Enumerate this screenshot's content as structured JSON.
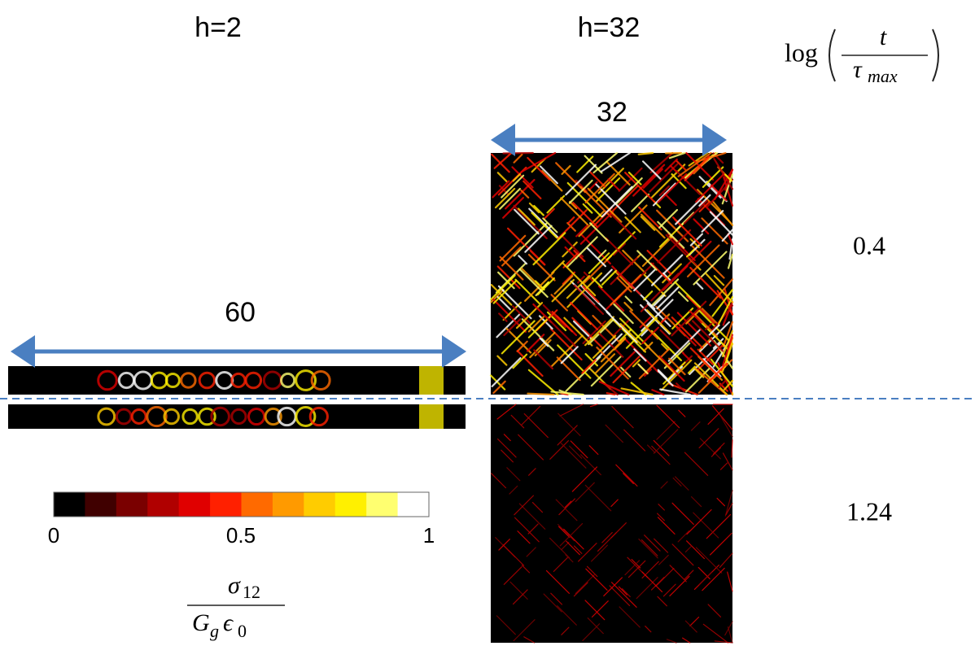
{
  "header": {
    "left_label": "h=2",
    "right_label": "h=32"
  },
  "time_label": {
    "log": "log",
    "numerator": "t",
    "denominator": "τ",
    "denominator_sub": "max"
  },
  "panels": {
    "width_right": "32",
    "width_left": "60"
  },
  "rows": [
    {
      "time": "0.4"
    },
    {
      "time": "1.24"
    }
  ],
  "colorbar": {
    "tick_labels": [
      "0",
      "0.5",
      "1"
    ],
    "colors": [
      "#000000",
      "#400000",
      "#7a0000",
      "#b00000",
      "#e00000",
      "#ff2000",
      "#ff6a00",
      "#ff9a00",
      "#ffcc00",
      "#fff000",
      "#ffff70",
      "#ffffff"
    ],
    "label": {
      "numerator": "σ",
      "numerator_sub": "12",
      "denominator_a": "G",
      "denominator_a_sub": "g",
      "denominator_b": "ϵ",
      "denominator_b_sub": "0"
    }
  },
  "guide_color": "#4a7fc1"
}
